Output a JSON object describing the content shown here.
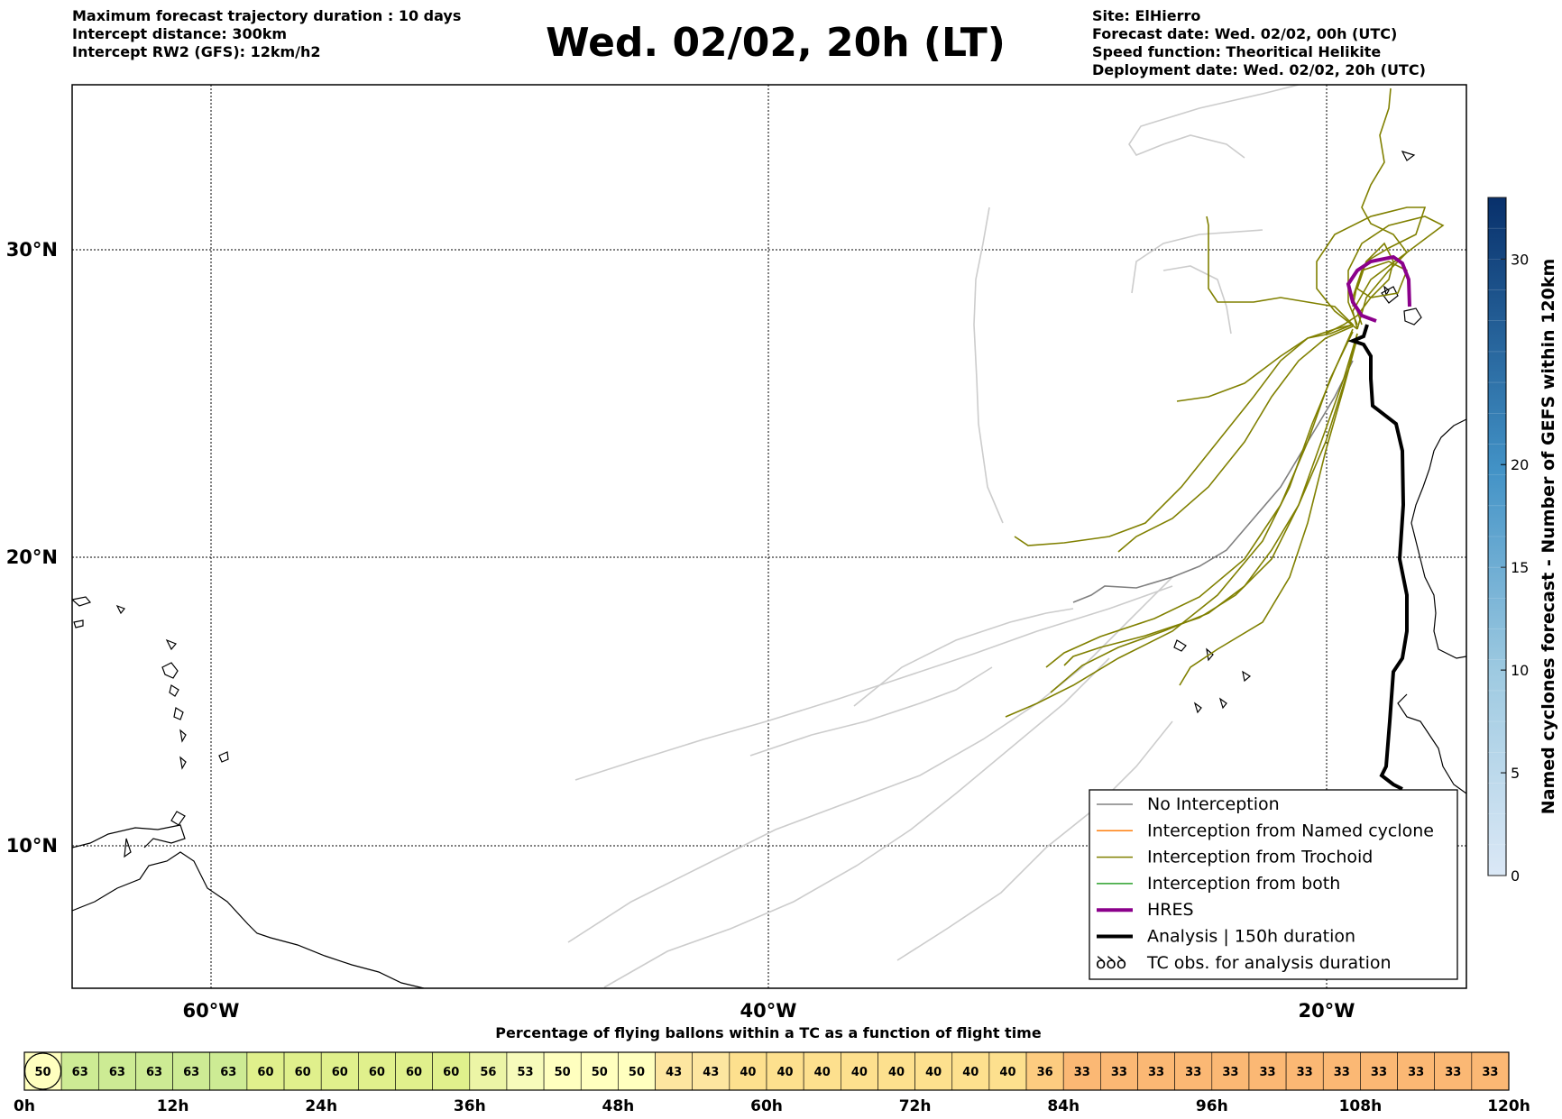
{
  "header": {
    "left": [
      "Maximum forecast trajectory duration : 10 days",
      "Intercept distance: 300km",
      "Intercept RW2 (GFS):  12km/h2"
    ],
    "title": "Wed. 02/02, 20h (LT)",
    "right": [
      "Site: ElHierro",
      "Forecast date: Wed. 02/02, 00h (UTC)",
      "Speed function: Theoritical Helikite",
      "Deployment date: Wed. 02/02, 20h (UTC)"
    ]
  },
  "map": {
    "lon_labels": [
      "60°W",
      "40°W",
      "20°W"
    ],
    "lat_labels": [
      "30°N",
      "20°N",
      "10°N"
    ]
  },
  "colorbar": {
    "label": "Named cyclones forecast - Number of GEFS within 120km",
    "ticks": [
      "0",
      "5",
      "10",
      "15",
      "20",
      "30"
    ],
    "color_low": "#dbe8f6",
    "color_high": "#08306b"
  },
  "legend": {
    "items": [
      {
        "label": "No Interception",
        "color": "#808080",
        "style": "line"
      },
      {
        "label": "Interception from Named cyclone",
        "color": "#ff7f0e",
        "style": "line"
      },
      {
        "label": "Interception from Trochoid",
        "color": "#808000",
        "style": "line"
      },
      {
        "label": "Interception from both",
        "color": "#2ca02c",
        "style": "line"
      },
      {
        "label": "HRES",
        "color": "#8b008b",
        "style": "thick"
      },
      {
        "label": "Analysis | 150h duration",
        "color": "#000000",
        "style": "thick"
      },
      {
        "label": "TC obs. for analysis duration",
        "color": "#000000",
        "style": "symbol",
        "symbol": "ꝺꝺꝺ"
      }
    ]
  },
  "percent_bar": {
    "title": "Percentage of flying ballons within a TC as a function of flight time",
    "values": [
      "50",
      "63",
      "63",
      "63",
      "63",
      "63",
      "60",
      "60",
      "60",
      "60",
      "60",
      "60",
      "56",
      "53",
      "50",
      "50",
      "50",
      "43",
      "43",
      "40",
      "40",
      "40",
      "40",
      "40",
      "40",
      "40",
      "40",
      "36",
      "33",
      "33",
      "33",
      "33",
      "33",
      "33",
      "33",
      "33",
      "33",
      "33",
      "33",
      "33"
    ],
    "time_labels": [
      "0h",
      "12h",
      "24h",
      "36h",
      "48h",
      "60h",
      "72h",
      "84h",
      "96h",
      "108h",
      "120h"
    ]
  }
}
